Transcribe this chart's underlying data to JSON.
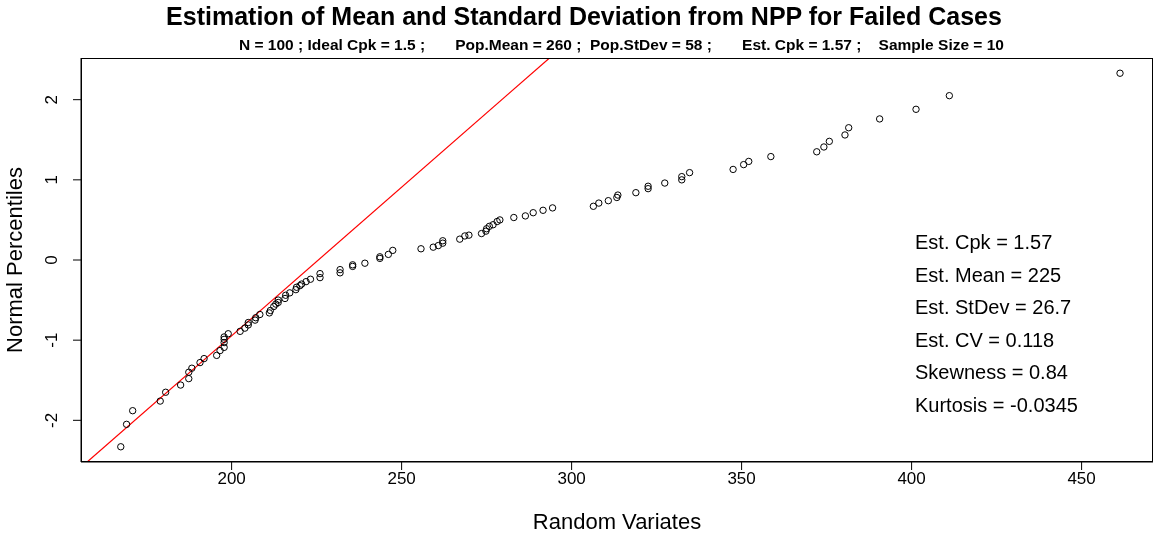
{
  "chart_data": {
    "type": "scatter",
    "title": "Estimation of Mean and Standard Deviation from NPP for Failed Cases",
    "subtitle": "N = 100 ; Ideal Cpk = 1.5 ;       Pop.Mean = 260 ;  Pop.StDev = 58 ;       Est. Cpk = 1.57 ;    Sample Size = 10",
    "xlabel": "Random Variates",
    "ylabel": "Normal Percentiles",
    "xlim": [
      155.7,
      471
    ],
    "xticks": [
      200,
      250,
      300,
      350,
      400,
      450
    ],
    "ylim": [
      -2.52,
      2.52
    ],
    "yticks": [
      -2,
      -1,
      0,
      1,
      2
    ],
    "annotations": [
      "Est. Cpk = 1.57",
      "Est. Mean = 225",
      "Est. StDev = 26.7",
      "Est. CV = 0.118",
      "Skewness = 0.84",
      "Kurtosis = -0.0345"
    ],
    "series": [
      {
        "type": "scatter",
        "color": "#000000",
        "marker": "circle",
        "x": [
          167.4,
          169.1,
          170.9,
          179.0,
          180.6,
          185.0,
          187.4,
          187.4,
          188.3,
          190.7,
          191.9,
          195.6,
          196.6,
          197.8,
          197.8,
          197.8,
          197.8,
          199.0,
          202.5,
          203.9,
          204.9,
          204.9,
          206.9,
          207.1,
          208.3,
          211.1,
          211.4,
          212.4,
          213.0,
          213.7,
          213.7,
          215.7,
          215.9,
          217.1,
          218.9,
          219.1,
          220.1,
          220.6,
          221.9,
          223.2,
          226.0,
          226.0,
          231.9,
          231.9,
          235.6,
          235.6,
          239.2,
          243.6,
          243.6,
          246.1,
          247.4,
          255.7,
          259.3,
          260.8,
          262.1,
          262.1,
          267.1,
          268.6,
          269.8,
          273.5,
          274.8,
          275.0,
          275.8,
          276.9,
          278.1,
          278.9,
          283.0,
          286.4,
          288.7,
          291.6,
          294.4,
          306.4,
          308.0,
          310.8,
          313.3,
          313.6,
          318.9,
          322.5,
          322.5,
          327.4,
          332.4,
          332.4,
          334.7,
          347.5,
          350.6,
          352.1,
          358.6,
          372.1,
          374.2,
          375.8,
          380.4,
          381.5,
          390.6,
          401.3,
          411.1,
          461.3
        ],
        "values": [
          -2.33,
          -2.05,
          -1.88,
          -1.76,
          -1.65,
          -1.56,
          -1.48,
          -1.4,
          -1.35,
          -1.28,
          -1.23,
          -1.19,
          -1.13,
          -1.09,
          -1.03,
          -0.99,
          -0.96,
          -0.92,
          -0.89,
          -0.85,
          -0.81,
          -0.78,
          -0.75,
          -0.72,
          -0.68,
          -0.66,
          -0.63,
          -0.58,
          -0.55,
          -0.53,
          -0.5,
          -0.48,
          -0.44,
          -0.41,
          -0.37,
          -0.34,
          -0.32,
          -0.3,
          -0.27,
          -0.24,
          -0.22,
          -0.17,
          -0.16,
          -0.12,
          -0.08,
          -0.06,
          -0.04,
          0.02,
          0.04,
          0.07,
          0.12,
          0.14,
          0.16,
          0.18,
          0.21,
          0.24,
          0.26,
          0.3,
          0.31,
          0.33,
          0.36,
          0.39,
          0.42,
          0.44,
          0.48,
          0.5,
          0.53,
          0.55,
          0.59,
          0.62,
          0.65,
          0.67,
          0.71,
          0.74,
          0.78,
          0.81,
          0.84,
          0.89,
          0.92,
          0.96,
          1.0,
          1.04,
          1.09,
          1.13,
          1.19,
          1.23,
          1.29,
          1.35,
          1.41,
          1.48,
          1.56,
          1.65,
          1.76,
          1.88,
          2.05,
          2.33
        ]
      },
      {
        "type": "line",
        "color": "#ff0000",
        "marker": "none",
        "x": [
          157.5,
          293.5
        ],
        "values": [
          -2.52,
          2.52
        ]
      }
    ]
  }
}
